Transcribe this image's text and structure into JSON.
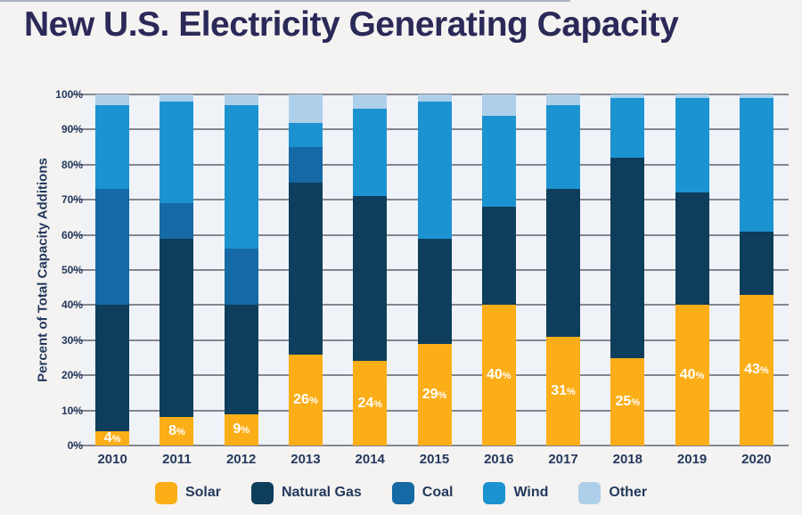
{
  "page": {
    "title": "New U.S. Electricity Generating Capacity"
  },
  "chart_data": {
    "type": "bar",
    "stacked": true,
    "title": "New U.S. Electricity Generating Capacity",
    "ylabel": "Percent of Total Capacity Additions",
    "xlabel": "",
    "ylim": [
      0,
      100
    ],
    "ytick_step": 10,
    "ytick_labels": [
      "0%",
      "10%",
      "20%",
      "30%",
      "40%",
      "50%",
      "60%",
      "70%",
      "80%",
      "90%",
      "100%"
    ],
    "grid": true,
    "legend_position": "bottom",
    "categories": [
      "2010",
      "2011",
      "2012",
      "2013",
      "2014",
      "2015",
      "2016",
      "2017",
      "2018",
      "2019",
      "2020"
    ],
    "series": [
      {
        "name": "Solar",
        "color": "#FBAE17",
        "values": [
          4,
          8,
          9,
          26,
          24,
          29,
          40,
          31,
          25,
          40,
          43
        ]
      },
      {
        "name": "Natural Gas",
        "color": "#0E3E5C",
        "values": [
          36,
          51,
          31,
          49,
          47,
          30,
          28,
          42,
          57,
          32,
          18
        ]
      },
      {
        "name": "Coal",
        "color": "#1569A4",
        "values": [
          33,
          10,
          16,
          10,
          0,
          0,
          0,
          0,
          0,
          0,
          0
        ]
      },
      {
        "name": "Wind",
        "color": "#1C93D1",
        "values": [
          24,
          29,
          41,
          7,
          25,
          39,
          26,
          24,
          17,
          27,
          38
        ]
      },
      {
        "name": "Other",
        "color": "#AECFE9",
        "values": [
          3,
          2,
          3,
          8,
          4,
          2,
          6,
          3,
          1,
          1,
          1
        ]
      }
    ],
    "bar_labels": {
      "series": "Solar",
      "values": [
        "4",
        "8",
        "9",
        "26",
        "24",
        "29",
        "40",
        "31",
        "25",
        "40",
        "43"
      ],
      "suffix": "%"
    },
    "colors": {
      "figure_background": "#F4F3F1",
      "plot_background": "#EFF3F8",
      "gridline": "#84868F",
      "title_text": "#2B2958",
      "axis_text": "#24395E",
      "bar_label_text": "#FFFFFF"
    }
  }
}
